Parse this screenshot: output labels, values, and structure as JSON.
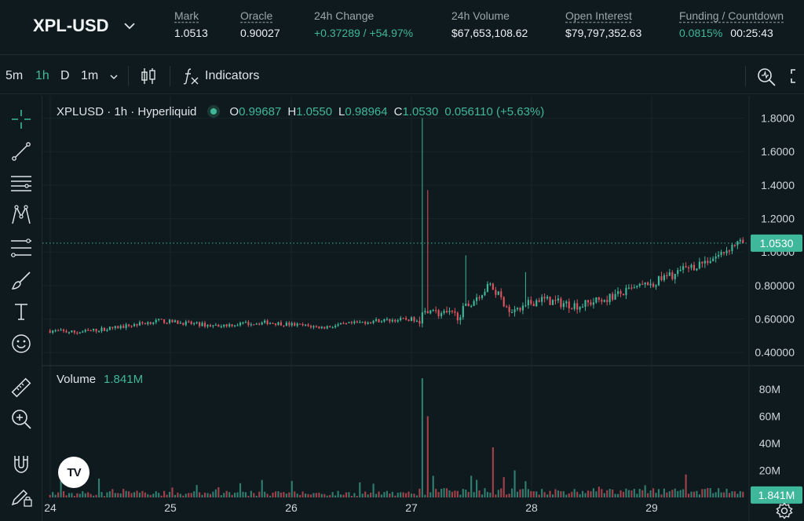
{
  "header": {
    "symbol": "XPL-USD",
    "stats": [
      {
        "label": "Mark",
        "value": "1.0513"
      },
      {
        "label": "Oracle",
        "value": "0.90027"
      },
      {
        "label": "24h Change",
        "value": "+0.37289 / +54.97%"
      },
      {
        "label": "24h Volume",
        "value": "$67,653,108.62"
      },
      {
        "label": "Open Interest",
        "value": "$79,797,352.63"
      },
      {
        "label": "Funding / Countdown",
        "value": "0.0815%",
        "countdown": "00:25:43"
      }
    ]
  },
  "toolbar": {
    "timeframes": [
      "5m",
      "1h",
      "D",
      "1m"
    ],
    "active_timeframe": "1h",
    "indicators_label": "Indicators"
  },
  "legend": {
    "title": "XPLUSD · 1h · Hyperliquid",
    "o_label": "O",
    "o": "0.99687",
    "h_label": "H",
    "h": "1.0550",
    "l_label": "L",
    "l": "0.98964",
    "c_label": "C",
    "c": "1.0530",
    "change": "0.056110 (+5.63%)"
  },
  "volume_legend": {
    "label": "Volume",
    "value": "1.841M"
  },
  "tv_logo": "TV",
  "colors": {
    "up": "#3fb79b",
    "down": "#e0525d",
    "up_volume": "#2e7d6f",
    "down_volume": "#a3404a",
    "background": "#0f1a1f"
  },
  "chart_data": {
    "type": "candlestick",
    "price_axis": {
      "ticks": [
        "1.8000",
        "1.6000",
        "1.4000",
        "1.2000",
        "1.0000",
        "0.80000",
        "0.60000",
        "0.40000"
      ],
      "range": [
        0.34,
        1.84
      ],
      "last_price": "1.0530"
    },
    "volume_axis": {
      "ticks": [
        "80M",
        "60M",
        "40M",
        "20M"
      ],
      "range": [
        0,
        95
      ],
      "last_volume": "1.841M"
    },
    "x_axis": {
      "ticks": [
        "24",
        "25",
        "26",
        "27",
        "28",
        "29"
      ]
    },
    "price_milestones": [
      {
        "t": 0,
        "v": 0.53
      },
      {
        "t": 10,
        "v": 0.52
      },
      {
        "t": 25,
        "v": 0.55
      },
      {
        "t": 40,
        "v": 0.59
      },
      {
        "t": 60,
        "v": 0.56
      },
      {
        "t": 80,
        "v": 0.58
      },
      {
        "t": 100,
        "v": 0.55
      },
      {
        "t": 120,
        "v": 0.59
      },
      {
        "t": 136,
        "v": 0.6
      },
      {
        "t": 138,
        "v": 0.66
      },
      {
        "t": 144,
        "v": 0.63
      },
      {
        "t": 150,
        "v": 0.62
      },
      {
        "t": 158,
        "v": 0.75
      },
      {
        "t": 162,
        "v": 0.8
      },
      {
        "t": 170,
        "v": 0.64
      },
      {
        "t": 180,
        "v": 0.72
      },
      {
        "t": 186,
        "v": 0.7
      },
      {
        "t": 195,
        "v": 0.68
      },
      {
        "t": 210,
        "v": 0.75
      },
      {
        "t": 224,
        "v": 0.83
      },
      {
        "t": 236,
        "v": 0.91
      },
      {
        "t": 246,
        "v": 0.98
      },
      {
        "t": 252,
        "v": 1.05
      }
    ],
    "spikes": [
      {
        "t": 137,
        "high": 1.8
      },
      {
        "t": 139,
        "high": 1.37
      },
      {
        "t": 153,
        "high": 0.98
      },
      {
        "t": 175,
        "high": 0.88
      }
    ],
    "volume_spikes": [
      {
        "t": 137,
        "v": 88
      },
      {
        "t": 139,
        "v": 60
      },
      {
        "t": 141,
        "v": 16
      },
      {
        "t": 155,
        "v": 16
      },
      {
        "t": 157,
        "v": 13
      },
      {
        "t": 163,
        "v": 37
      },
      {
        "t": 167,
        "v": 15
      },
      {
        "t": 171,
        "v": 20
      },
      {
        "t": 175,
        "v": 12
      },
      {
        "t": 202,
        "v": 8
      },
      {
        "t": 219,
        "v": 9
      },
      {
        "t": 234,
        "v": 17
      }
    ]
  }
}
